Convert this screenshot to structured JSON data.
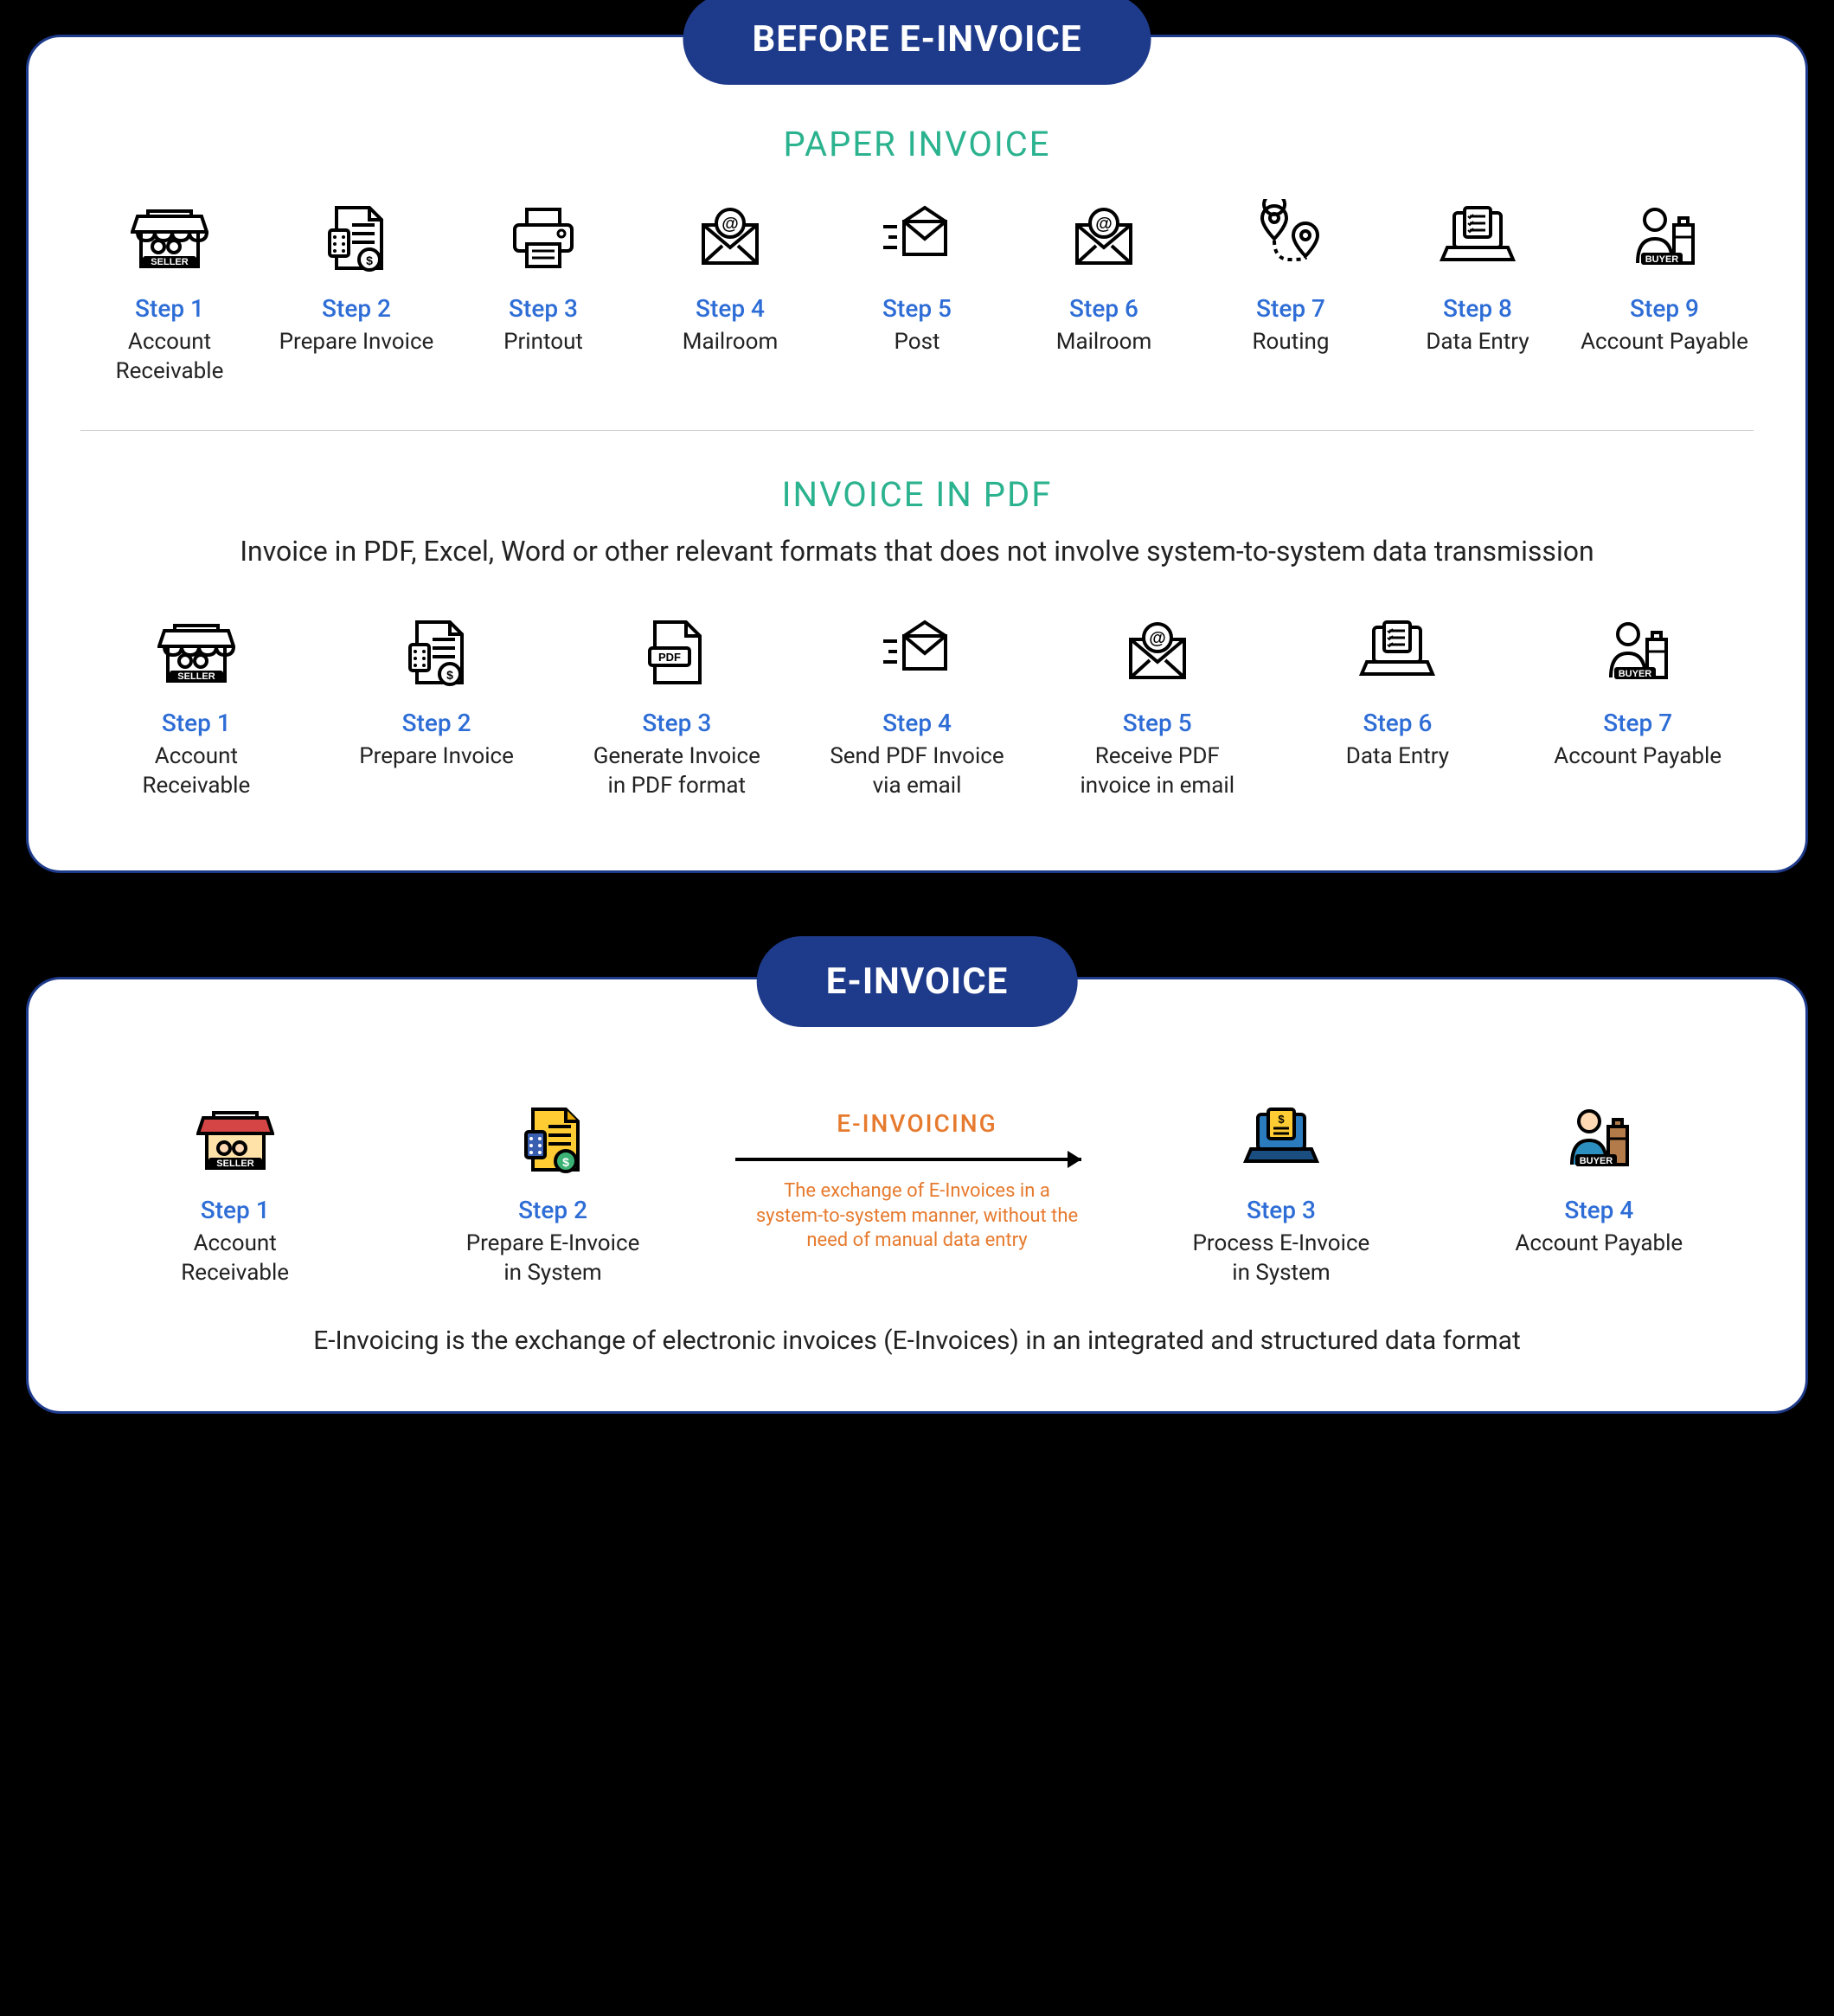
{
  "colors": {
    "panel_bg": "#ffffff",
    "panel_border": "#1e3a8a",
    "header_bg": "#1e3a8a",
    "header_text": "#ffffff",
    "page_bg": "#000000",
    "section_title_green": "#2bb28e",
    "step_num_blue": "#2e6dd6",
    "step_desc": "#222222",
    "divider": "#d0d0d0",
    "accent_orange": "#e67a2e",
    "icon_stroke": "#000000"
  },
  "before": {
    "header": "BEFORE E-INVOICE",
    "paper": {
      "title": "PAPER INVOICE",
      "steps": [
        {
          "num": "Step 1",
          "desc": "Account Receivable",
          "icon": "seller"
        },
        {
          "num": "Step 2",
          "desc": "Prepare Invoice",
          "icon": "invoice-doc"
        },
        {
          "num": "Step 3",
          "desc": "Printout",
          "icon": "printer"
        },
        {
          "num": "Step 4",
          "desc": "Mailroom",
          "icon": "envelope-at"
        },
        {
          "num": "Step 5",
          "desc": "Post",
          "icon": "envelope-send"
        },
        {
          "num": "Step 6",
          "desc": "Mailroom",
          "icon": "envelope-at"
        },
        {
          "num": "Step 7",
          "desc": "Routing",
          "icon": "route-pins"
        },
        {
          "num": "Step 8",
          "desc": "Data Entry",
          "icon": "laptop-list"
        },
        {
          "num": "Step 9",
          "desc": "Account Payable",
          "icon": "buyer"
        }
      ]
    },
    "pdf": {
      "title": "INVOICE IN PDF",
      "subtitle": "Invoice in PDF, Excel, Word or other relevant formats that does not involve system-to-system data transmission",
      "steps": [
        {
          "num": "Step 1",
          "desc": "Account Receivable",
          "icon": "seller"
        },
        {
          "num": "Step 2",
          "desc": "Prepare Invoice",
          "icon": "invoice-doc"
        },
        {
          "num": "Step 3",
          "desc": "Generate Invoice in PDF format",
          "icon": "pdf-file"
        },
        {
          "num": "Step 4",
          "desc": "Send PDF Invoice via email",
          "icon": "envelope-send"
        },
        {
          "num": "Step 5",
          "desc": "Receive PDF invoice in email",
          "icon": "envelope-at"
        },
        {
          "num": "Step 6",
          "desc": "Data Entry",
          "icon": "laptop-list"
        },
        {
          "num": "Step 7",
          "desc": "Account Payable",
          "icon": "buyer"
        }
      ]
    }
  },
  "einvoice": {
    "header": "E-INVOICE",
    "arrow": {
      "title": "E-INVOICING",
      "desc": "The exchange of E-Invoices in a system-to-system manner, without the need of manual data entry"
    },
    "steps": [
      {
        "num": "Step 1",
        "desc": "Account Receivable",
        "icon": "seller-color"
      },
      {
        "num": "Step 2",
        "desc": "Prepare E-Invoice in System",
        "icon": "invoice-doc-color"
      },
      {
        "num": "Step 3",
        "desc": "Process E-Invoice in System",
        "icon": "laptop-color"
      },
      {
        "num": "Step 4",
        "desc": "Account Payable",
        "icon": "buyer-color"
      }
    ],
    "bottom_note": "E-Invoicing is the exchange of electronic invoices (E-Invoices) in an integrated and structured data format"
  }
}
